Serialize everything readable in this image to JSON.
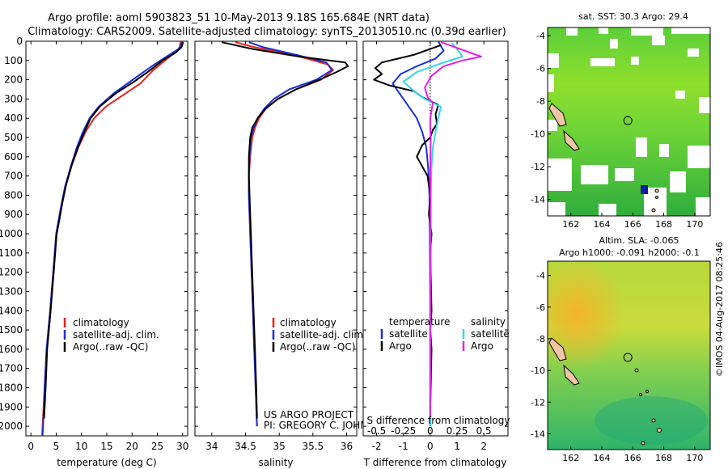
{
  "header": {
    "title_line1": "Argo profile: aoml 5903823_51 10-May-2013 9.18S 165.684E (NRT data)",
    "title_line2": "Climatology: CARS2009. Satellite-adjusted climatology: synTS_20130510.nc (0.39d earlier)"
  },
  "colors": {
    "climatology": "#e8201a",
    "satellite": "#1a2fd6",
    "argo": "#000000",
    "sat_salinity": "#33d6e6",
    "argo_salinity": "#e61ee6"
  },
  "credits": {
    "project": "US ARGO PROJECT",
    "pi": "PI: GREGORY C. JOHNSON",
    "imos": "©IMOS 04-Aug-2017 08:25:46"
  },
  "chart_data": [
    {
      "type": "line",
      "name": "temperature-profile",
      "xlabel": "temperature (deg C)",
      "xlim": [
        -1,
        31
      ],
      "xticks": [
        0,
        5,
        10,
        15,
        20,
        25,
        30
      ],
      "ylim": [
        0,
        2050
      ],
      "yticks": [
        0,
        100,
        200,
        300,
        400,
        500,
        600,
        700,
        800,
        900,
        1000,
        1100,
        1200,
        1300,
        1400,
        1500,
        1600,
        1700,
        1800,
        1900,
        2000
      ],
      "legend": [
        "climatology",
        "satellite-adj. clim.",
        "Argo(..raw -QC)"
      ],
      "series": [
        {
          "name": "climatology",
          "color_key": "climatology",
          "points": [
            [
              29.6,
              0
            ],
            [
              29.4,
              40
            ],
            [
              27.0,
              90
            ],
            [
              24.2,
              150
            ],
            [
              21.6,
              220
            ],
            [
              18.2,
              280
            ],
            [
              14.8,
              340
            ],
            [
              12.5,
              400
            ],
            [
              10.8,
              470
            ],
            [
              9.4,
              550
            ],
            [
              8.0,
              650
            ],
            [
              6.8,
              760
            ],
            [
              5.9,
              880
            ],
            [
              5.0,
              1000
            ],
            [
              4.4,
              1200
            ],
            [
              3.8,
              1400
            ],
            [
              3.1,
              1600
            ],
            [
              2.7,
              1800
            ],
            [
              2.3,
              2000
            ],
            [
              2.2,
              2050
            ]
          ]
        },
        {
          "name": "satellite-adj. clim.",
          "color_key": "satellite",
          "points": [
            [
              30.0,
              0
            ],
            [
              29.2,
              40
            ],
            [
              25.6,
              100
            ],
            [
              22.8,
              150
            ],
            [
              19.6,
              210
            ],
            [
              16.4,
              270
            ],
            [
              13.4,
              340
            ],
            [
              11.6,
              400
            ],
            [
              10.3,
              470
            ],
            [
              9.1,
              550
            ],
            [
              7.9,
              650
            ],
            [
              6.7,
              760
            ],
            [
              5.8,
              880
            ],
            [
              5.0,
              1000
            ],
            [
              4.4,
              1200
            ],
            [
              3.8,
              1400
            ],
            [
              3.1,
              1600
            ],
            [
              2.7,
              1800
            ],
            [
              2.4,
              2000
            ],
            [
              2.3,
              2050
            ]
          ]
        },
        {
          "name": "Argo(..raw -QC)",
          "color_key": "argo",
          "points": [
            [
              30.1,
              5
            ],
            [
              29.8,
              30
            ],
            [
              28.6,
              60
            ],
            [
              26.0,
              100
            ],
            [
              23.6,
              150
            ],
            [
              20.4,
              210
            ],
            [
              16.8,
              270
            ],
            [
              13.6,
              340
            ],
            [
              11.8,
              400
            ],
            [
              10.6,
              470
            ],
            [
              9.3,
              550
            ],
            [
              8.1,
              640
            ],
            [
              7.0,
              740
            ],
            [
              6.2,
              840
            ],
            [
              5.6,
              930
            ],
            [
              5.1,
              1000
            ],
            [
              4.5,
              1200
            ],
            [
              3.9,
              1400
            ],
            [
              3.2,
              1600
            ],
            [
              2.9,
              1800
            ],
            [
              2.6,
              1960
            ]
          ]
        }
      ]
    },
    {
      "type": "line",
      "name": "salinity-profile",
      "xlabel": "salinity",
      "xlim": [
        33.75,
        36.15
      ],
      "xticks": [
        34,
        34.5,
        35,
        35.5,
        36
      ],
      "ylim": [
        0,
        2050
      ],
      "legend": [
        "climatology",
        "satellite-adj. clim.",
        "Argo(..raw -QC)"
      ],
      "series": [
        {
          "name": "climatology",
          "color_key": "climatology",
          "points": [
            [
              34.35,
              5
            ],
            [
              34.62,
              30
            ],
            [
              35.2,
              70
            ],
            [
              35.72,
              120
            ],
            [
              35.8,
              150
            ],
            [
              35.62,
              200
            ],
            [
              35.25,
              250
            ],
            [
              34.98,
              300
            ],
            [
              34.8,
              350
            ],
            [
              34.7,
              400
            ],
            [
              34.64,
              450
            ],
            [
              34.6,
              500
            ],
            [
              34.57,
              600
            ],
            [
              34.55,
              700
            ],
            [
              34.55,
              800
            ],
            [
              34.56,
              900
            ],
            [
              34.57,
              1000
            ],
            [
              34.59,
              1200
            ],
            [
              34.61,
              1400
            ],
            [
              34.63,
              1600
            ],
            [
              34.65,
              1800
            ],
            [
              34.67,
              2000
            ]
          ]
        },
        {
          "name": "satellite-adj. clim.",
          "color_key": "satellite",
          "points": [
            [
              34.55,
              5
            ],
            [
              34.75,
              30
            ],
            [
              35.25,
              70
            ],
            [
              35.7,
              110
            ],
            [
              35.78,
              150
            ],
            [
              35.55,
              200
            ],
            [
              35.15,
              250
            ],
            [
              34.92,
              300
            ],
            [
              34.78,
              350
            ],
            [
              34.68,
              400
            ],
            [
              34.62,
              450
            ],
            [
              34.58,
              500
            ],
            [
              34.56,
              600
            ],
            [
              34.55,
              700
            ],
            [
              34.55,
              800
            ],
            [
              34.56,
              900
            ],
            [
              34.57,
              1000
            ],
            [
              34.59,
              1200
            ],
            [
              34.61,
              1400
            ],
            [
              34.63,
              1600
            ],
            [
              34.65,
              1800
            ],
            [
              34.67,
              2000
            ]
          ]
        },
        {
          "name": "Argo(..raw -QC)",
          "color_key": "argo",
          "points": [
            [
              34.15,
              5
            ],
            [
              34.6,
              40
            ],
            [
              35.3,
              80
            ],
            [
              35.98,
              110
            ],
            [
              36.02,
              130
            ],
            [
              35.85,
              160
            ],
            [
              35.6,
              200
            ],
            [
              35.25,
              250
            ],
            [
              34.98,
              300
            ],
            [
              34.8,
              350
            ],
            [
              34.68,
              400
            ],
            [
              34.6,
              450
            ],
            [
              34.57,
              500
            ],
            [
              34.55,
              600
            ],
            [
              34.55,
              700
            ],
            [
              34.56,
              800
            ],
            [
              34.57,
              900
            ],
            [
              34.58,
              1000
            ],
            [
              34.6,
              1200
            ],
            [
              34.62,
              1400
            ],
            [
              34.64,
              1600
            ],
            [
              34.66,
              1800
            ],
            [
              34.67,
              1960
            ]
          ]
        }
      ]
    },
    {
      "type": "line",
      "name": "difference-profile",
      "xlabel": "T difference from climatology",
      "xlabel_top": "S difference from climatology",
      "xlim": [
        -2.5,
        2.9
      ],
      "xticks": [
        -2,
        -1,
        0,
        1,
        2
      ],
      "sticks": [
        -0.5,
        -0.25,
        0,
        0.25,
        0.5
      ],
      "sticks_positions": [
        -2,
        -1,
        0,
        1,
        2
      ],
      "ylim": [
        0,
        2050
      ],
      "legend_temperature_title": "temperature",
      "legend_salinity_title": "salinity",
      "legend_temperature": [
        "satellite",
        "Argo"
      ],
      "legend_salinity": [
        "satellite",
        "Argo"
      ],
      "series": [
        {
          "name": "temperature satellite",
          "color_key": "satellite",
          "points": [
            [
              0.3,
              0
            ],
            [
              0.5,
              50
            ],
            [
              0.2,
              90
            ],
            [
              -0.5,
              130
            ],
            [
              -1.1,
              170
            ],
            [
              -1.4,
              220
            ],
            [
              -1.1,
              280
            ],
            [
              -0.8,
              340
            ],
            [
              -0.5,
              400
            ],
            [
              -0.3,
              470
            ],
            [
              -0.15,
              550
            ],
            [
              -0.08,
              650
            ],
            [
              -0.03,
              800
            ],
            [
              -0.02,
              1000
            ],
            [
              0,
              1400
            ],
            [
              0,
              2000
            ]
          ]
        },
        {
          "name": "temperature Argo",
          "color_key": "argo",
          "points": [
            [
              0.4,
              20
            ],
            [
              -0.6,
              70
            ],
            [
              -1.8,
              110
            ],
            [
              -2.05,
              140
            ],
            [
              -1.8,
              170
            ],
            [
              -2.1,
              200
            ],
            [
              -1.5,
              230
            ],
            [
              -0.6,
              260
            ],
            [
              -0.3,
              290
            ],
            [
              0.3,
              330
            ],
            [
              0.2,
              380
            ],
            [
              0.25,
              430
            ],
            [
              0.1,
              460
            ],
            [
              0,
              500
            ],
            [
              -0.3,
              540
            ],
            [
              -0.5,
              600
            ],
            [
              -0.3,
              650
            ],
            [
              -0.1,
              700
            ],
            [
              0,
              800
            ],
            [
              -0.05,
              900
            ],
            [
              0.05,
              1000
            ],
            [
              0,
              1100
            ],
            [
              0.05,
              1400
            ],
            [
              0,
              1500
            ],
            [
              0.05,
              1600
            ],
            [
              0,
              1900
            ]
          ]
        },
        {
          "name": "salinity satellite",
          "color_key": "sat_salinity",
          "points": [
            [
              0.8,
              10
            ],
            [
              1.0,
              40
            ],
            [
              1.2,
              80
            ],
            [
              0.3,
              120
            ],
            [
              -0.5,
              160
            ],
            [
              -1.0,
              210
            ],
            [
              -0.6,
              260
            ],
            [
              -0.2,
              300
            ],
            [
              0.4,
              340
            ],
            [
              0.3,
              400
            ],
            [
              0.2,
              470
            ],
            [
              0.1,
              550
            ],
            [
              0.05,
              650
            ],
            [
              0.02,
              800
            ],
            [
              0,
              1000
            ],
            [
              0,
              1400
            ],
            [
              0,
              2000
            ]
          ]
        },
        {
          "name": "salinity Argo",
          "color_key": "argo_salinity",
          "points": [
            [
              0.4,
              5
            ],
            [
              0.9,
              30
            ],
            [
              1.9,
              80
            ],
            [
              1.2,
              100
            ],
            [
              0.5,
              130
            ],
            [
              0.05,
              180
            ],
            [
              -0.2,
              240
            ],
            [
              -0.1,
              290
            ],
            [
              0.1,
              320
            ],
            [
              0.05,
              360
            ],
            [
              0,
              400
            ],
            [
              0,
              450
            ],
            [
              0.02,
              500
            ],
            [
              0,
              700
            ],
            [
              0.02,
              1000
            ],
            [
              0,
              1400
            ],
            [
              0,
              1500
            ],
            [
              0,
              1950
            ]
          ]
        }
      ]
    },
    {
      "type": "heatmap",
      "name": "sst-map",
      "title": "sat. SST: 30.3  Argo: 29.4",
      "xlim": [
        160.5,
        171
      ],
      "ylim": [
        -15,
        -3.5
      ],
      "xticks": [
        162,
        164,
        166,
        168,
        170
      ],
      "yticks": [
        -4,
        -6,
        -8,
        -10,
        -12,
        -14
      ],
      "argo_position": [
        165.684,
        -9.18
      ]
    },
    {
      "type": "heatmap",
      "name": "sla-map",
      "title_line1": "Altim. SLA: -0.065",
      "title_line2": "Argo h1000: -0.091  h2000: -0.1",
      "xlim": [
        160.5,
        171
      ],
      "ylim": [
        -15,
        -3.1
      ],
      "xticks": [
        162,
        164,
        166,
        168,
        170
      ],
      "yticks": [
        -4,
        -6,
        -8,
        -10,
        -12,
        -14
      ],
      "argo_position": [
        165.684,
        -9.18
      ]
    }
  ]
}
